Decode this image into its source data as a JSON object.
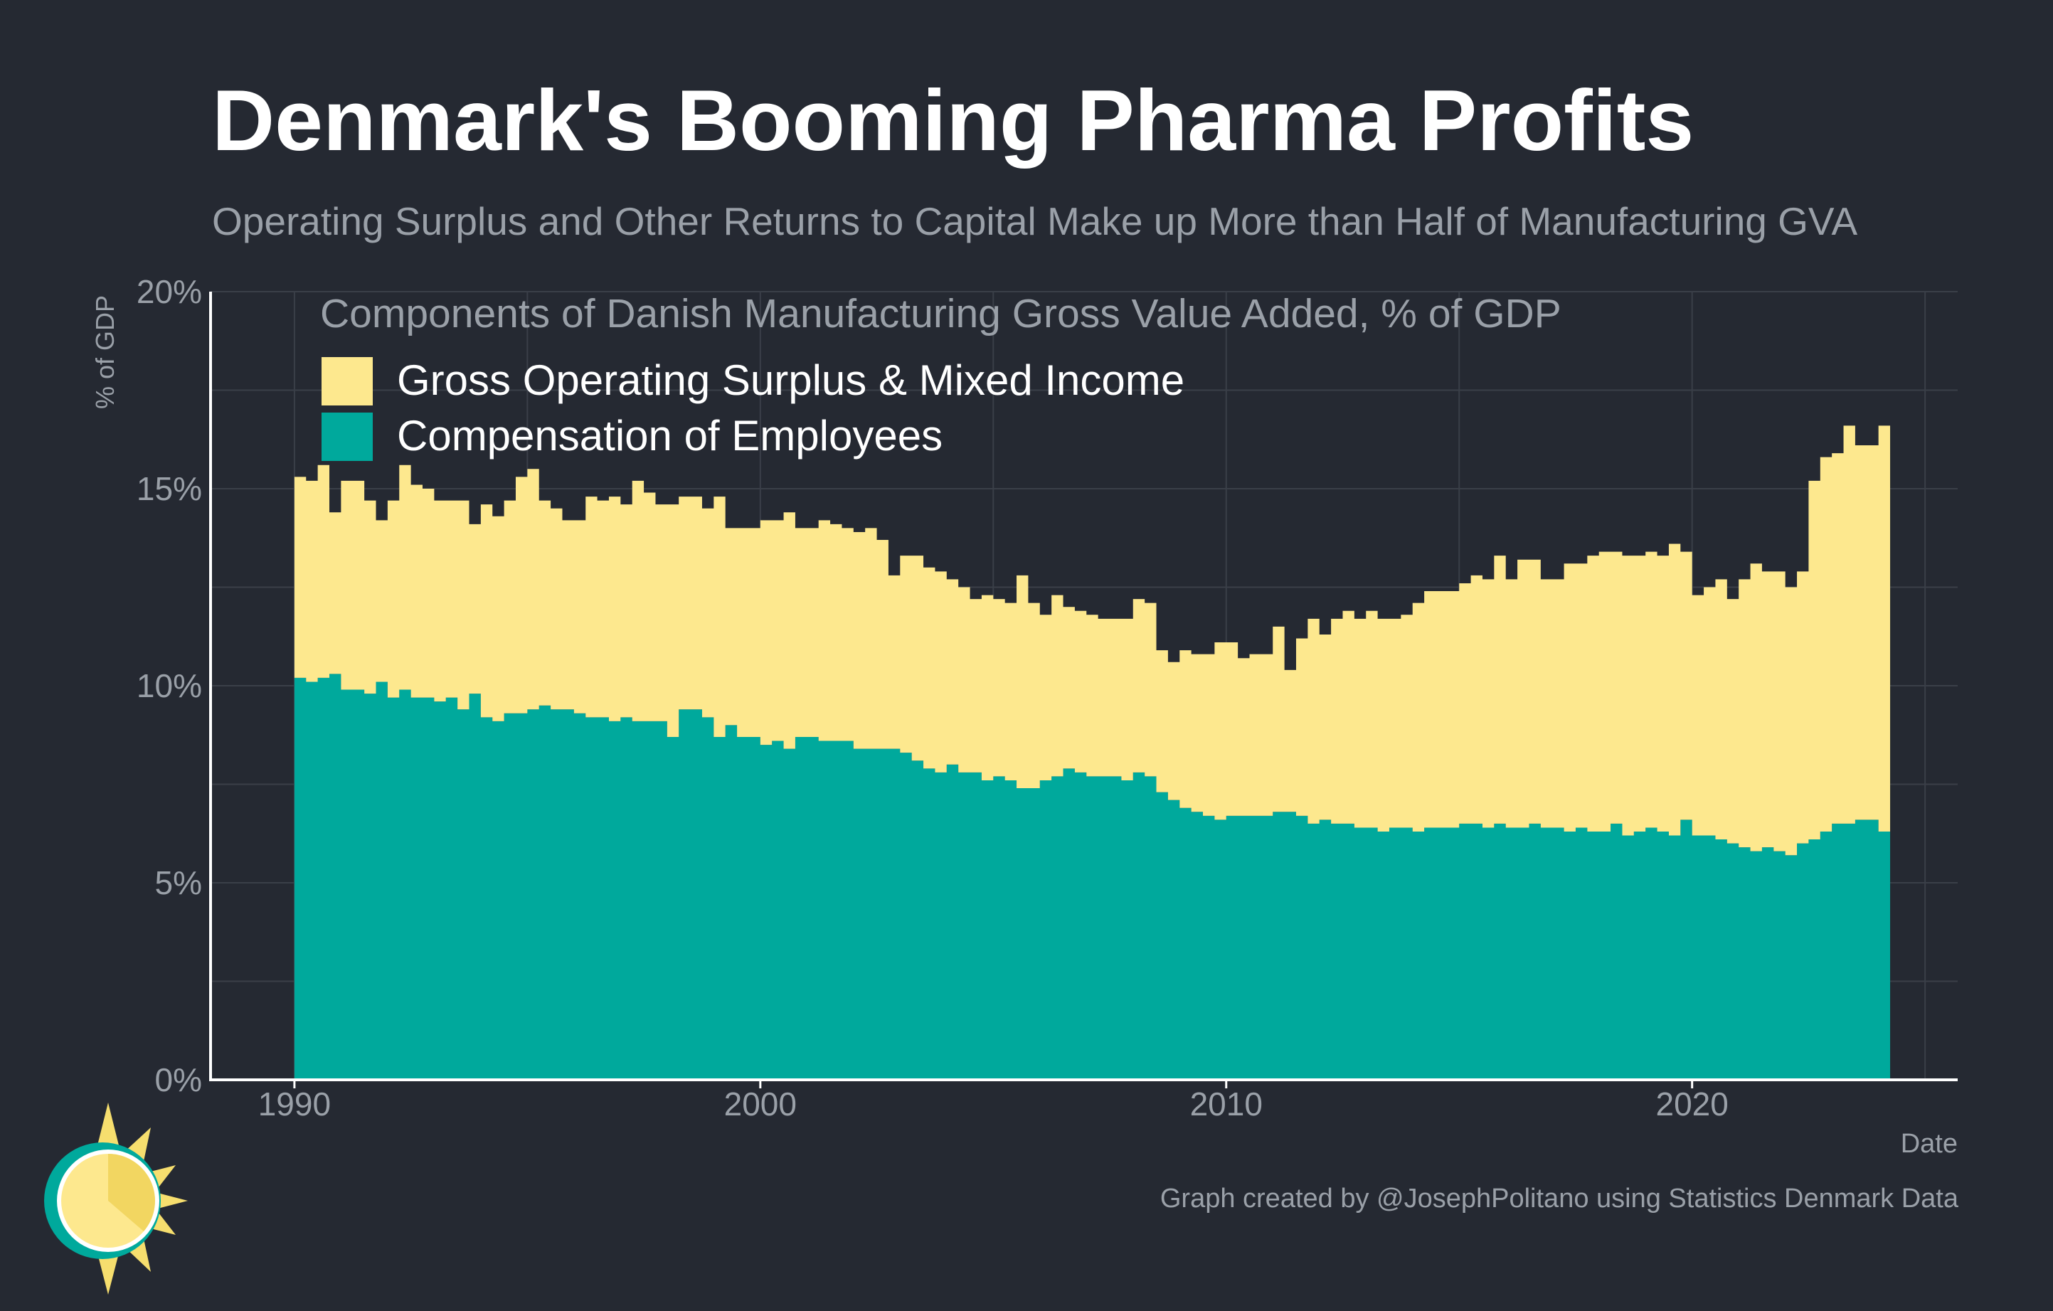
{
  "title": "Denmark's Booming Pharma Profits",
  "subtitle": "Operating Surplus and Other Returns to Capital Make up More than Half of Manufacturing GVA",
  "caption": "Graph created by @JosephPolitano using Statistics Denmark Data",
  "colors": {
    "background": "#252932",
    "surplus": "#fde88e",
    "compensation": "#00a99c",
    "text_muted": "#9aa0a8",
    "grid": "#3a3f48",
    "logo_teal": "#00a99c",
    "logo_yellow": "#f6de6e"
  },
  "chart_data": {
    "type": "area",
    "stacked": true,
    "title": "Components of Danish Manufacturing Gross Value Added, % of GDP",
    "xlabel": "Date",
    "ylabel": "% of GDP",
    "xlim": [
      1988.2,
      2025.7
    ],
    "ylim": [
      0,
      20
    ],
    "xticks": [
      1990,
      2000,
      2010,
      2020
    ],
    "xtick_labels": [
      "1990",
      "2000",
      "2010",
      "2020"
    ],
    "yticks": [
      0,
      5,
      10,
      15,
      20
    ],
    "ytick_labels": [
      "0%",
      "5%",
      "10%",
      "15%",
      "20%"
    ],
    "grid": true,
    "legend_position": "top-left",
    "x_start": 1990.0,
    "x_step": 0.25,
    "series": [
      {
        "name": "Compensation of Employees",
        "values": [
          10.2,
          10.1,
          10.2,
          10.3,
          9.9,
          9.9,
          9.8,
          10.1,
          9.7,
          9.9,
          9.7,
          9.7,
          9.6,
          9.7,
          9.4,
          9.8,
          9.2,
          9.1,
          9.3,
          9.3,
          9.4,
          9.5,
          9.4,
          9.4,
          9.3,
          9.2,
          9.2,
          9.1,
          9.2,
          9.1,
          9.1,
          9.1,
          8.7,
          9.4,
          9.4,
          9.2,
          8.7,
          9.0,
          8.7,
          8.7,
          8.5,
          8.6,
          8.4,
          8.7,
          8.7,
          8.6,
          8.6,
          8.6,
          8.4,
          8.4,
          8.4,
          8.4,
          8.3,
          8.1,
          7.9,
          7.8,
          8.0,
          7.8,
          7.8,
          7.6,
          7.7,
          7.6,
          7.4,
          7.4,
          7.6,
          7.7,
          7.9,
          7.8,
          7.7,
          7.7,
          7.7,
          7.6,
          7.8,
          7.7,
          7.3,
          7.1,
          6.9,
          6.8,
          6.7,
          6.6,
          6.7,
          6.7,
          6.7,
          6.7,
          6.8,
          6.8,
          6.7,
          6.5,
          6.6,
          6.5,
          6.5,
          6.4,
          6.4,
          6.3,
          6.4,
          6.4,
          6.3,
          6.4,
          6.4,
          6.4,
          6.5,
          6.5,
          6.4,
          6.5,
          6.4,
          6.4,
          6.5,
          6.4,
          6.4,
          6.3,
          6.4,
          6.3,
          6.3,
          6.5,
          6.2,
          6.3,
          6.4,
          6.3,
          6.2,
          6.6,
          6.2,
          6.2,
          6.1,
          6.0,
          5.9,
          5.8,
          5.9,
          5.8,
          5.7,
          6.0,
          6.1,
          6.3,
          6.5,
          6.5,
          6.6,
          6.6,
          6.3
        ]
      },
      {
        "name": "Gross Operating Surplus & Mixed Income",
        "values": [
          5.1,
          5.1,
          5.4,
          4.1,
          5.3,
          5.3,
          4.9,
          4.1,
          5.0,
          5.7,
          5.4,
          5.3,
          5.1,
          5.0,
          5.3,
          4.3,
          5.4,
          5.2,
          5.4,
          6.0,
          6.1,
          5.2,
          5.1,
          4.8,
          4.9,
          5.6,
          5.5,
          5.7,
          5.4,
          6.1,
          5.8,
          5.5,
          5.9,
          5.4,
          5.4,
          5.3,
          6.1,
          5.0,
          5.3,
          5.3,
          5.7,
          5.6,
          6.0,
          5.3,
          5.3,
          5.6,
          5.5,
          5.4,
          5.5,
          5.6,
          5.3,
          4.4,
          5.0,
          5.2,
          5.1,
          5.1,
          4.7,
          4.7,
          4.4,
          4.7,
          4.5,
          4.5,
          5.4,
          4.7,
          4.2,
          4.6,
          4.1,
          4.1,
          4.1,
          4.0,
          4.0,
          4.1,
          4.4,
          4.4,
          3.6,
          3.5,
          4.0,
          4.0,
          4.1,
          4.5,
          4.4,
          4.0,
          4.1,
          4.1,
          4.7,
          3.6,
          4.5,
          5.2,
          4.7,
          5.2,
          5.4,
          5.3,
          5.5,
          5.4,
          5.3,
          5.4,
          5.8,
          6.0,
          6.0,
          6.0,
          6.1,
          6.3,
          6.3,
          6.8,
          6.3,
          6.8,
          6.7,
          6.3,
          6.3,
          6.8,
          6.7,
          7.0,
          7.1,
          6.9,
          7.1,
          7.0,
          7.0,
          7.0,
          7.4,
          6.8,
          6.1,
          6.3,
          6.6,
          6.2,
          6.8,
          7.3,
          7.0,
          7.1,
          6.8,
          6.9,
          9.1,
          9.5,
          9.4,
          10.1,
          9.5,
          9.5,
          10.3
        ]
      }
    ]
  }
}
